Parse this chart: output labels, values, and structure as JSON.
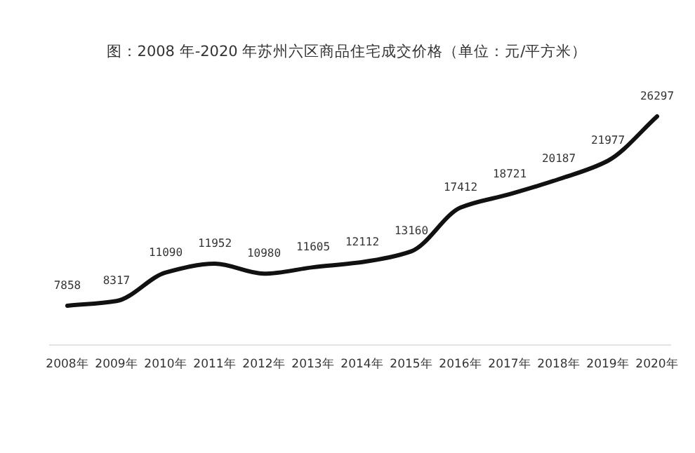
{
  "chart_data": {
    "type": "line",
    "title": "图：2008 年-2020 年苏州六区商品住宅成交价格（单位：元/平方米）",
    "categories": [
      "2008年",
      "2009年",
      "2010年",
      "2011年",
      "2012年",
      "2013年",
      "2014年",
      "2015年",
      "2016年",
      "2017年",
      "2018年",
      "2019年",
      "2020年"
    ],
    "values": [
      7858,
      8317,
      11090,
      11952,
      10980,
      11605,
      12112,
      13160,
      17412,
      18721,
      20187,
      21977,
      26297
    ],
    "color": "#111111",
    "data_labels": true,
    "marker": "none",
    "line_style": "solid"
  }
}
